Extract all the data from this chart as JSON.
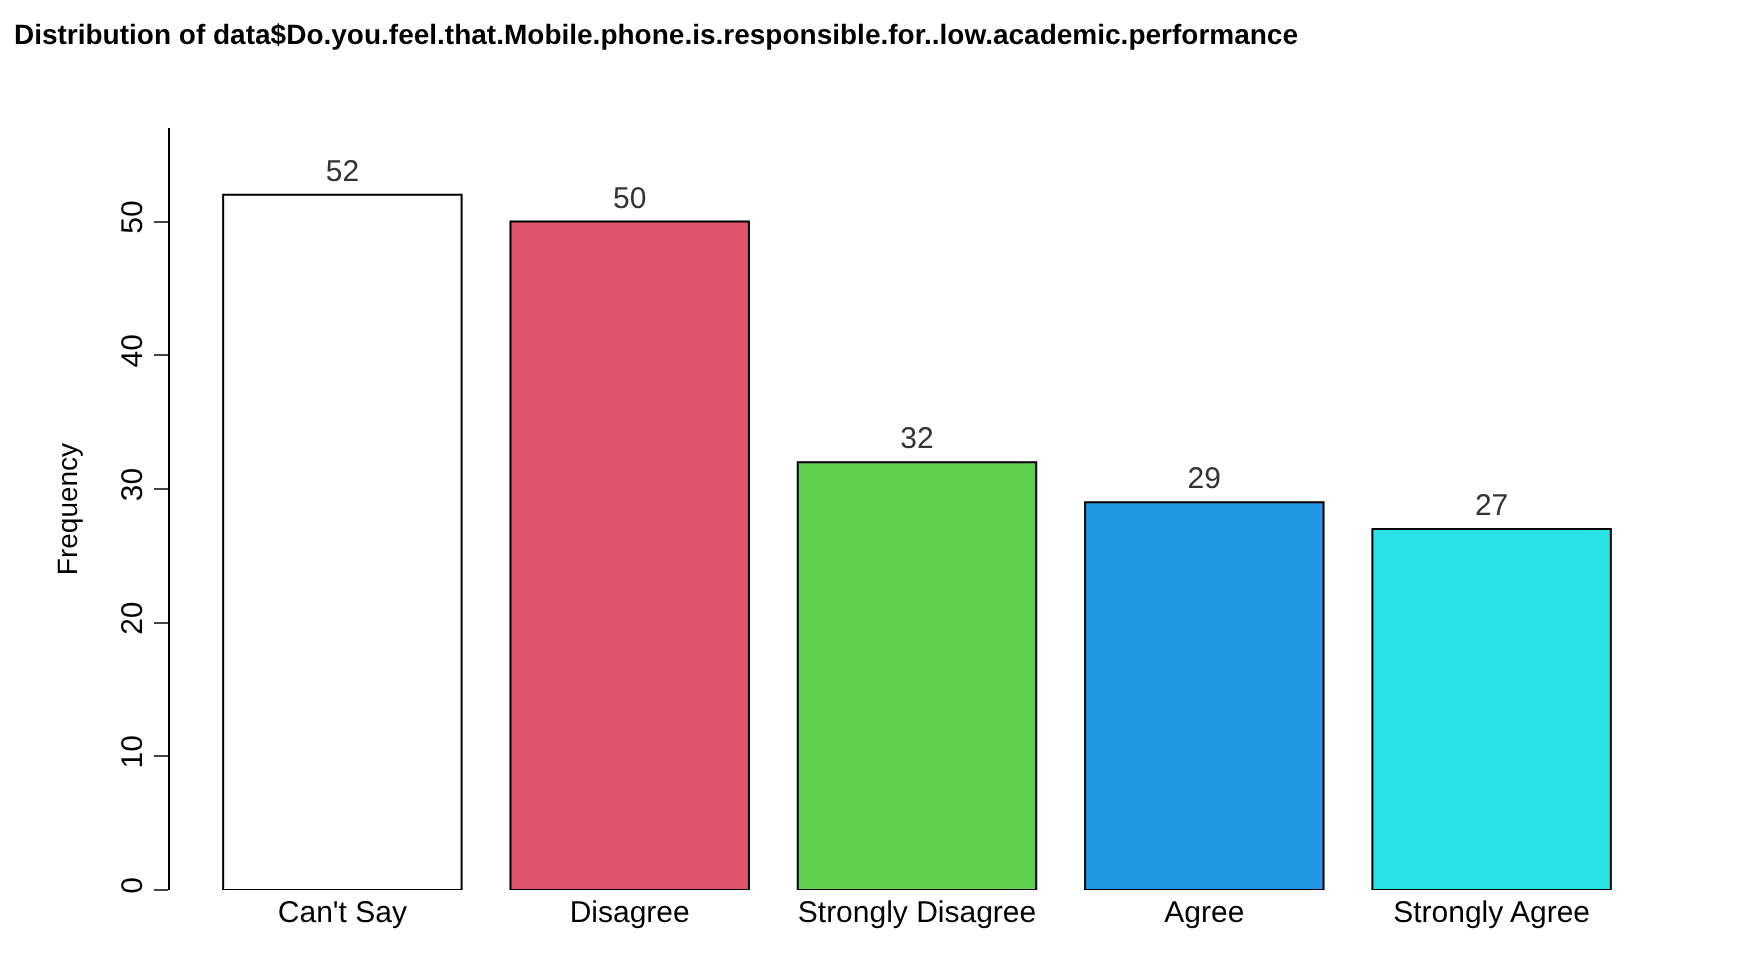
{
  "chart_data": {
    "type": "bar",
    "title": "Distribution of data$Do.you.feel.that.Mobile.phone.is.responsible.for..low.academic.performance",
    "ylabel": "Frequency",
    "categories": [
      "Can't Say",
      "Disagree",
      "Strongly Disagree",
      "Agree",
      "Strongly Agree"
    ],
    "values": [
      52,
      50,
      32,
      29,
      27
    ],
    "colors": [
      "#ffffff",
      "#df536b",
      "#61d04f",
      "#2297e6",
      "#28e2e5"
    ],
    "ylim": [
      0,
      57
    ],
    "yticks": [
      0,
      10,
      20,
      30,
      40,
      50
    ],
    "data_labels": true
  }
}
